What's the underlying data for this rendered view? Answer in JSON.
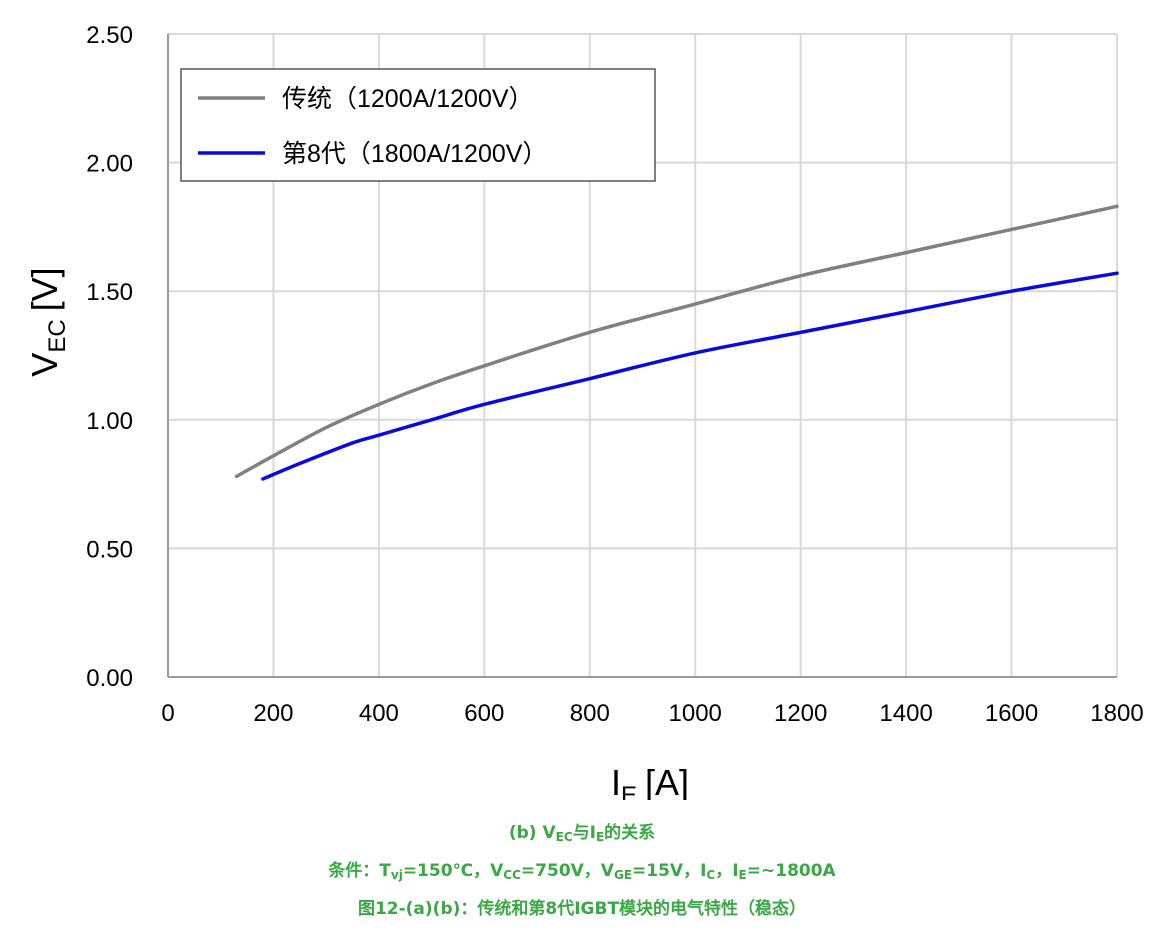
{
  "chart_data": {
    "type": "line",
    "xlabel_main": "I",
    "xlabel_sub": "E",
    "xlabel_unit": "[A]",
    "ylabel_main": "V",
    "ylabel_sub": "EC",
    "ylabel_unit": "[V]",
    "xlim": [
      0,
      1800
    ],
    "ylim": [
      0,
      2.5
    ],
    "x_ticks": [
      "0",
      "200",
      "400",
      "600",
      "800",
      "1000",
      "1200",
      "1400",
      "1600",
      "1800"
    ],
    "y_ticks": [
      "0.00",
      "0.50",
      "1.00",
      "1.50",
      "2.00",
      "2.50"
    ],
    "grid": true,
    "legend_position": "top-left",
    "series": [
      {
        "name": "传统（1200A/1200V）",
        "color": "#808080",
        "x": [
          130,
          200,
          300,
          400,
          500,
          600,
          800,
          1000,
          1200,
          1400,
          1600,
          1800
        ],
        "y": [
          0.78,
          0.86,
          0.97,
          1.06,
          1.14,
          1.21,
          1.34,
          1.45,
          1.56,
          1.65,
          1.74,
          1.83
        ]
      },
      {
        "name": "第8代（1800A/1200V）",
        "color": "#0a0ae0",
        "x": [
          180,
          250,
          350,
          400,
          500,
          600,
          800,
          1000,
          1200,
          1400,
          1600,
          1800
        ],
        "y": [
          0.77,
          0.83,
          0.91,
          0.94,
          1.0,
          1.06,
          1.16,
          1.26,
          1.34,
          1.42,
          1.5,
          1.57
        ]
      }
    ]
  },
  "captions": {
    "line1": {
      "prefix": "(b) V",
      "sub1": "EC",
      "mid": "与I",
      "sub2": "E",
      "suffix": "的关系"
    },
    "line2": {
      "p1": "条件：T",
      "s1": "vj",
      "p2": "=150℃，V",
      "s2": "CC",
      "p3": "=750V，V",
      "s3": "GE",
      "p4": "=15V，I",
      "s4": "C",
      "p5": "，I",
      "s5": "E",
      "p6": "=~1800A"
    },
    "line3": "图12-(a)(b)：传统和第8代IGBT模块的电气特性（稳态）"
  },
  "colors": {
    "caption": "#3aa845",
    "grid": "#d9d9d9",
    "axis": "#000000"
  }
}
